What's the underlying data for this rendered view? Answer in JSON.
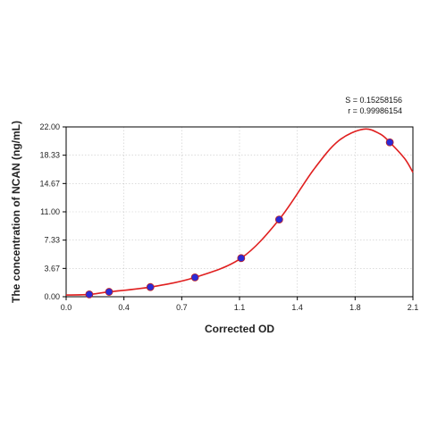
{
  "stats": {
    "s_text": "S = 0.15258156",
    "r_text": "r = 0.99986154"
  },
  "chart_data": {
    "type": "scatter",
    "title": "",
    "xlabel": "Corrected OD",
    "ylabel": "The concentration of NCAN (ng/mL)",
    "xlim": [
      0,
      2.1
    ],
    "ylim": [
      0,
      22
    ],
    "x_ticks": [
      "0.0",
      "0.4",
      "0.7",
      "1.1",
      "1.4",
      "1.8",
      "2.1"
    ],
    "y_ticks": [
      "0.00",
      "3.67",
      "7.33",
      "11.00",
      "14.67",
      "18.33",
      "22.00"
    ],
    "grid": true,
    "legend": "none",
    "series": [
      {
        "type": "scatter",
        "x": [
          0.14,
          0.26,
          0.51,
          0.78,
          1.06,
          1.29,
          1.96
        ],
        "y": [
          0.3,
          0.63,
          1.25,
          2.5,
          5.0,
          10.0,
          20.0
        ],
        "color": "#2b2bd6"
      },
      {
        "type": "line",
        "x": [
          0.0,
          0.14,
          0.26,
          0.51,
          0.78,
          1.06,
          1.29,
          1.5,
          1.65,
          1.8,
          1.9,
          1.96,
          2.05,
          2.1
        ],
        "y": [
          0.22,
          0.3,
          0.63,
          1.25,
          2.5,
          5.0,
          10.0,
          16.5,
          20.2,
          21.7,
          21.1,
          20.0,
          17.9,
          16.1
        ],
        "color": "#e02020"
      }
    ]
  }
}
